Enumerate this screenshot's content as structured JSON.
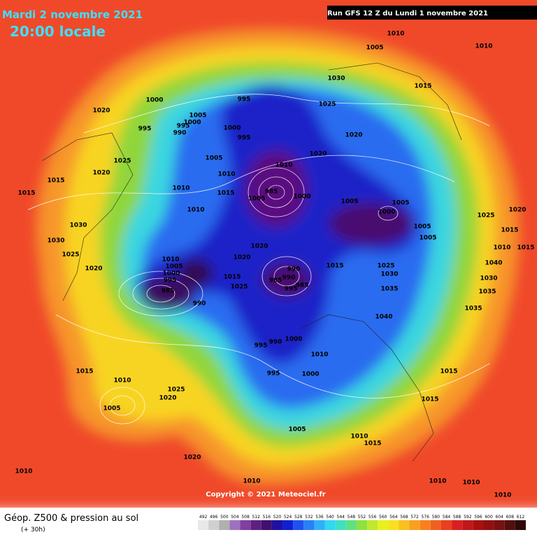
{
  "header": {
    "date": "Mardi 2 novembre 2021",
    "time": "20:00 locale",
    "run": "Run GFS 12 Z du Lundi 1 novembre 2021"
  },
  "pressure_labels": [
    1010,
    1010,
    1005,
    1030,
    1015,
    995,
    1025,
    1020,
    1000,
    1005,
    1000,
    995,
    990,
    995,
    1000,
    995,
    1020,
    1025,
    1005,
    1020,
    1010,
    1020,
    1015,
    1010,
    1010,
    985,
    1000,
    1015,
    1015,
    1005,
    1005,
    1000,
    1005,
    1010,
    1025,
    1020,
    1030,
    1005,
    1015,
    1030,
    1005,
    1010,
    1015,
    1020,
    1025,
    1020,
    1010,
    1005,
    1000,
    995,
    1020,
    990,
    1015,
    1025,
    1040,
    1015,
    990,
    985,
    1030,
    1030,
    985,
    985,
    995,
    1025,
    1035,
    1035,
    990,
    1035,
    1040,
    995,
    990,
    1000,
    1010,
    1015,
    995,
    1000,
    1015,
    1010,
    1025,
    1020,
    1015,
    1005,
    1005,
    1010,
    1015,
    1020,
    1010,
    1010,
    1010,
    1010,
    1010
  ],
  "copyright": "Copyright © 2021 Meteociel.fr",
  "footer": {
    "title": "Géop. Z500 & pression au sol",
    "lead": "(+ 30h)"
  },
  "legend": [
    492,
    496,
    500,
    504,
    508,
    512,
    516,
    520,
    524,
    528,
    532,
    536,
    540,
    544,
    548,
    552,
    556,
    560,
    564,
    568,
    572,
    576,
    580,
    584,
    588,
    592,
    596,
    600,
    604,
    608,
    612
  ]
}
